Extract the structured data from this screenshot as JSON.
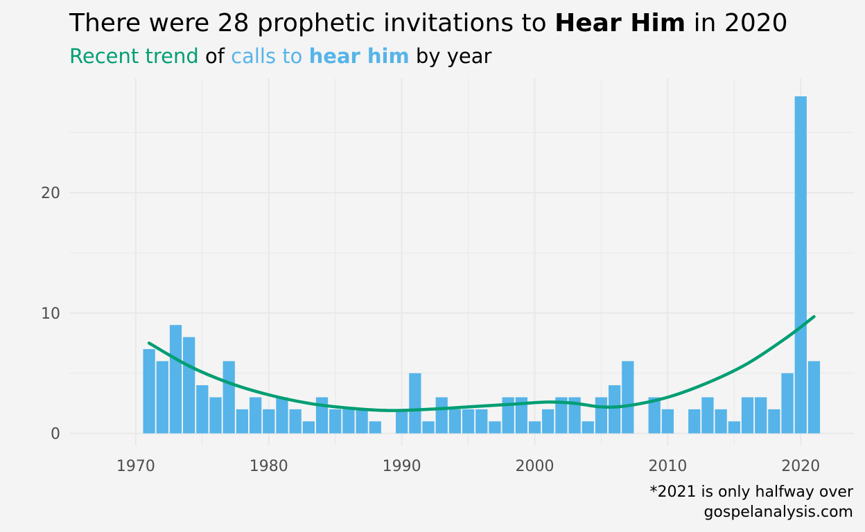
{
  "header": {
    "title_pre": "There were 28 prophetic invitations to ",
    "title_bold": "Hear Him",
    "title_post": " in 2020",
    "sub_green": "Recent trend",
    "sub_of": " of ",
    "sub_blue": "calls to ",
    "sub_blue_bold": "hear him",
    "sub_end": " by year"
  },
  "caption": {
    "note": "*2021 is only halfway over",
    "source": "gospelanalysis.com"
  },
  "colors": {
    "bar": "#56b4e9",
    "trend": "#009e73",
    "background": "#f4f4f4",
    "grid": "#e8e8e8"
  },
  "chart_data": {
    "type": "bar",
    "title": "There were 28 prophetic invitations to Hear Him in 2020",
    "subtitle": "Recent trend of calls to hear him by year",
    "xlabel": "",
    "ylabel": "",
    "xlim": [
      1965,
      2024
    ],
    "ylim": [
      -1,
      29.5
    ],
    "x_ticks": [
      1970,
      1980,
      1990,
      2000,
      2010,
      2020
    ],
    "y_ticks": [
      0,
      10,
      20
    ],
    "grid": true,
    "legend": "none",
    "x": [
      1971,
      1972,
      1973,
      1974,
      1975,
      1976,
      1977,
      1978,
      1979,
      1980,
      1981,
      1982,
      1983,
      1984,
      1985,
      1986,
      1987,
      1988,
      1989,
      1990,
      1991,
      1992,
      1993,
      1994,
      1995,
      1996,
      1997,
      1998,
      1999,
      2000,
      2001,
      2002,
      2003,
      2004,
      2005,
      2006,
      2007,
      2008,
      2009,
      2010,
      2011,
      2012,
      2013,
      2014,
      2015,
      2016,
      2017,
      2018,
      2019,
      2020,
      2021
    ],
    "values": [
      7,
      6,
      9,
      8,
      4,
      3,
      6,
      2,
      3,
      2,
      3,
      2,
      1,
      3,
      2,
      2,
      2,
      1,
      0,
      2,
      5,
      1,
      3,
      2,
      2,
      2,
      1,
      3,
      3,
      1,
      2,
      3,
      3,
      1,
      3,
      4,
      6,
      0,
      3,
      2,
      0,
      2,
      3,
      2,
      1,
      3,
      3,
      2,
      5,
      28,
      6
    ],
    "trend": {
      "type": "line",
      "x": [
        1971,
        1974,
        1977,
        1980,
        1983,
        1986,
        1989,
        1992,
        1995,
        1998,
        2001,
        2003,
        2005,
        2007,
        2010,
        2013,
        2016,
        2019,
        2021
      ],
      "values": [
        7.5,
        5.6,
        4.2,
        3.2,
        2.5,
        2.1,
        1.9,
        2.0,
        2.2,
        2.4,
        2.6,
        2.5,
        2.2,
        2.3,
        3.0,
        4.2,
        5.8,
        8.0,
        9.7
      ]
    }
  }
}
